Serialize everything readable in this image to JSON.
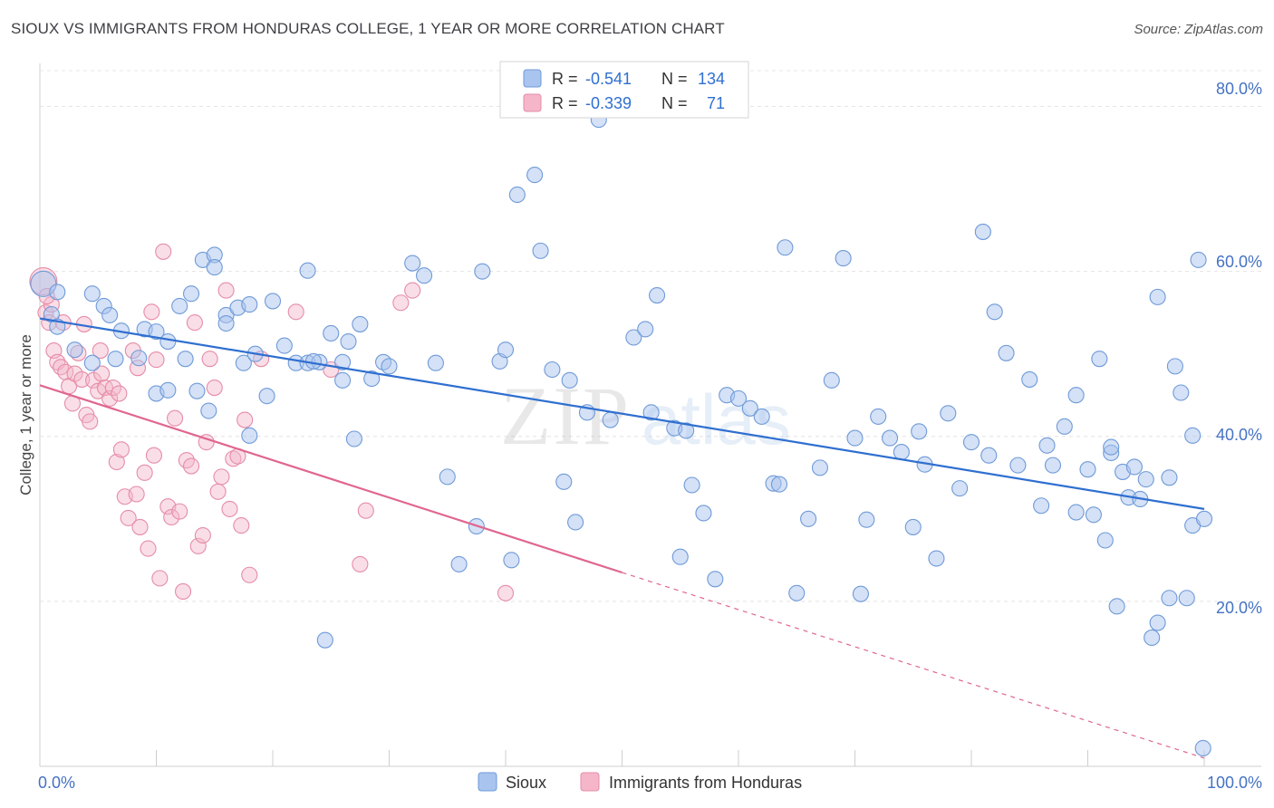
{
  "title": "SIOUX VS IMMIGRANTS FROM HONDURAS COLLEGE, 1 YEAR OR MORE CORRELATION CHART",
  "source": "Source: ZipAtlas.com",
  "watermark": "ZIPatlas",
  "colors": {
    "sioux_fill": "#a9c4ee",
    "sioux_stroke": "#6f9ad8",
    "sioux_line": "#2f6fd0",
    "honduras_fill": "#f5b6c9",
    "honduras_stroke": "#e58ca8",
    "honduras_line": "#e06690",
    "tick_text": "#4472c4"
  },
  "legend_top": {
    "rows": [
      {
        "r_label": "R =",
        "r_value": "-0.541",
        "n_label": "N =",
        "n_value": "134"
      },
      {
        "r_label": "R =",
        "r_value": "-0.339",
        "n_label": "N =",
        "n_value": "71"
      }
    ]
  },
  "legend_bottom": [
    "Sioux",
    "Immigrants from Honduras"
  ],
  "chart_data": {
    "type": "scatter",
    "title": "SIOUX VS IMMIGRANTS FROM HONDURAS COLLEGE, 1 YEAR OR MORE CORRELATION CHART",
    "xlabel": "",
    "ylabel": "College, 1 year or more",
    "xlim": [
      0,
      100
    ],
    "ylim": [
      0,
      85
    ],
    "x_tick_labels": [
      "0.0%",
      "100.0%"
    ],
    "y_ticks": [
      20,
      40,
      60,
      80
    ],
    "y_tick_labels": [
      "20.0%",
      "40.0%",
      "60.0%",
      "80.0%"
    ],
    "grid": true,
    "series": [
      {
        "name": "Sioux",
        "R": -0.541,
        "N": 134,
        "trend": [
          [
            0,
            54.3
          ],
          [
            100,
            31.2
          ]
        ],
        "points": [
          [
            0.3,
            58.5
          ],
          [
            1.5,
            57.5
          ],
          [
            4.5,
            57.3
          ],
          [
            5.5,
            55.8
          ],
          [
            6.0,
            54.7
          ],
          [
            7.0,
            52.8
          ],
          [
            9.0,
            53.0
          ],
          [
            10.0,
            52.7
          ],
          [
            11.0,
            51.5
          ],
          [
            12.0,
            55.8
          ],
          [
            13.0,
            57.3
          ],
          [
            14.0,
            61.4
          ],
          [
            15.0,
            62.0
          ],
          [
            16.0,
            54.7
          ],
          [
            17.0,
            55.6
          ],
          [
            18.0,
            56.0
          ],
          [
            1.0,
            54.8
          ],
          [
            1.5,
            53.3
          ],
          [
            3.0,
            50.5
          ],
          [
            4.5,
            48.9
          ],
          [
            6.5,
            49.4
          ],
          [
            8.5,
            49.5
          ],
          [
            10.0,
            45.2
          ],
          [
            11.0,
            45.6
          ],
          [
            12.5,
            49.4
          ],
          [
            13.5,
            45.5
          ],
          [
            14.5,
            43.1
          ],
          [
            15.0,
            60.5
          ],
          [
            16.0,
            53.7
          ],
          [
            17.5,
            48.9
          ],
          [
            18.5,
            50.0
          ],
          [
            19.5,
            44.9
          ],
          [
            21.0,
            51.0
          ],
          [
            22.0,
            48.9
          ],
          [
            23.0,
            48.9
          ],
          [
            24.0,
            49.0
          ],
          [
            25.0,
            52.5
          ],
          [
            26.0,
            46.8
          ],
          [
            27.5,
            53.6
          ],
          [
            28.5,
            47.0
          ],
          [
            29.5,
            49.0
          ],
          [
            20.0,
            56.4
          ],
          [
            23.0,
            60.1
          ],
          [
            23.5,
            49.1
          ],
          [
            26.0,
            49.0
          ],
          [
            27.0,
            39.7
          ],
          [
            30.0,
            48.5
          ],
          [
            32.0,
            61.0
          ],
          [
            33.0,
            59.5
          ],
          [
            34.0,
            48.9
          ],
          [
            35.0,
            35.1
          ],
          [
            36.0,
            24.5
          ],
          [
            37.5,
            29.1
          ],
          [
            38.0,
            60.0
          ],
          [
            39.5,
            49.1
          ],
          [
            40.5,
            25.0
          ],
          [
            41.0,
            69.3
          ],
          [
            42.5,
            71.7
          ],
          [
            43.0,
            62.5
          ],
          [
            44.0,
            48.1
          ],
          [
            45.0,
            34.5
          ],
          [
            46.0,
            29.6
          ],
          [
            47.0,
            42.9
          ],
          [
            48.0,
            78.4
          ],
          [
            49.0,
            42.0
          ],
          [
            51.0,
            52.0
          ],
          [
            52.0,
            53.0
          ],
          [
            53.0,
            57.1
          ],
          [
            54.5,
            41.0
          ],
          [
            55.0,
            25.4
          ],
          [
            56.0,
            34.1
          ],
          [
            57.0,
            30.7
          ],
          [
            58.0,
            22.7
          ],
          [
            59.0,
            45.0
          ],
          [
            60.0,
            44.6
          ],
          [
            61.0,
            43.4
          ],
          [
            62.0,
            42.4
          ],
          [
            63.0,
            34.3
          ],
          [
            64.0,
            62.9
          ],
          [
            65.0,
            21.0
          ],
          [
            67.0,
            36.2
          ],
          [
            68.0,
            46.8
          ],
          [
            69.0,
            61.6
          ],
          [
            70.0,
            39.8
          ],
          [
            71.0,
            29.9
          ],
          [
            72.0,
            42.4
          ],
          [
            73.0,
            39.8
          ],
          [
            74.0,
            38.1
          ],
          [
            75.0,
            29.0
          ],
          [
            76.0,
            36.6
          ],
          [
            77.0,
            25.2
          ],
          [
            78.0,
            42.8
          ],
          [
            79.0,
            33.7
          ],
          [
            80.0,
            39.3
          ],
          [
            81.0,
            64.8
          ],
          [
            82.0,
            55.1
          ],
          [
            83.0,
            50.1
          ],
          [
            84.0,
            36.5
          ],
          [
            85.0,
            46.9
          ],
          [
            86.0,
            31.6
          ],
          [
            87.0,
            36.5
          ],
          [
            88.0,
            41.2
          ],
          [
            89.0,
            45.0
          ],
          [
            90.0,
            36.0
          ],
          [
            91.0,
            49.4
          ],
          [
            92.0,
            38.0
          ],
          [
            93.0,
            35.7
          ],
          [
            94.0,
            36.3
          ],
          [
            95.0,
            34.8
          ],
          [
            96.0,
            56.9
          ],
          [
            97.0,
            35.0
          ],
          [
            98.0,
            45.3
          ],
          [
            99.0,
            40.1
          ],
          [
            99.5,
            61.4
          ],
          [
            89.0,
            30.8
          ],
          [
            90.5,
            30.5
          ],
          [
            91.5,
            27.4
          ],
          [
            92.5,
            19.4
          ],
          [
            93.5,
            32.6
          ],
          [
            94.5,
            32.4
          ],
          [
            95.5,
            15.6
          ],
          [
            96.0,
            17.4
          ],
          [
            97.0,
            20.4
          ],
          [
            98.5,
            20.4
          ],
          [
            99.0,
            29.2
          ],
          [
            18.0,
            40.1
          ],
          [
            24.5,
            15.3
          ],
          [
            40.0,
            50.5
          ],
          [
            52.5,
            42.9
          ],
          [
            55.5,
            40.7
          ],
          [
            63.5,
            34.2
          ],
          [
            66.0,
            30.0
          ],
          [
            70.5,
            20.9
          ],
          [
            75.5,
            40.6
          ],
          [
            81.5,
            37.7
          ],
          [
            86.5,
            38.9
          ],
          [
            92.0,
            38.7
          ],
          [
            99.9,
            2.2
          ],
          [
            97.5,
            48.5
          ],
          [
            100.0,
            30.0
          ],
          [
            45.5,
            46.8
          ],
          [
            26.5,
            51.5
          ]
        ]
      },
      {
        "name": "Immigrants from Honduras",
        "R": -0.339,
        "N": 71,
        "trend": [
          [
            0,
            46.2
          ],
          [
            50,
            23.5
          ]
        ],
        "trend_dashed": [
          [
            50,
            23.5
          ],
          [
            100,
            1.0
          ]
        ],
        "points": [
          [
            0.3,
            58.8
          ],
          [
            0.5,
            55.0
          ],
          [
            0.8,
            53.8
          ],
          [
            1.2,
            50.4
          ],
          [
            1.5,
            49.0
          ],
          [
            1.8,
            48.4
          ],
          [
            2.2,
            47.8
          ],
          [
            2.5,
            46.1
          ],
          [
            2.8,
            44.0
          ],
          [
            3.0,
            47.6
          ],
          [
            3.3,
            50.1
          ],
          [
            3.6,
            46.9
          ],
          [
            4.0,
            42.6
          ],
          [
            4.3,
            41.8
          ],
          [
            4.6,
            46.8
          ],
          [
            5.0,
            45.5
          ],
          [
            5.3,
            47.6
          ],
          [
            5.6,
            45.9
          ],
          [
            6.0,
            44.6
          ],
          [
            6.3,
            45.9
          ],
          [
            6.6,
            36.9
          ],
          [
            7.0,
            38.4
          ],
          [
            7.3,
            32.7
          ],
          [
            7.6,
            30.1
          ],
          [
            8.0,
            50.4
          ],
          [
            8.3,
            33.0
          ],
          [
            8.6,
            29.0
          ],
          [
            9.0,
            35.6
          ],
          [
            9.3,
            26.4
          ],
          [
            9.6,
            55.1
          ],
          [
            10.0,
            49.3
          ],
          [
            10.3,
            22.8
          ],
          [
            10.6,
            62.4
          ],
          [
            11.0,
            31.5
          ],
          [
            11.3,
            30.2
          ],
          [
            11.6,
            42.2
          ],
          [
            12.0,
            30.9
          ],
          [
            12.3,
            21.2
          ],
          [
            12.6,
            37.1
          ],
          [
            13.0,
            36.4
          ],
          [
            13.3,
            53.8
          ],
          [
            13.6,
            26.7
          ],
          [
            14.0,
            28.0
          ],
          [
            14.3,
            39.3
          ],
          [
            14.6,
            49.4
          ],
          [
            15.0,
            45.9
          ],
          [
            15.3,
            33.3
          ],
          [
            15.6,
            35.1
          ],
          [
            16.0,
            57.7
          ],
          [
            16.3,
            31.2
          ],
          [
            16.6,
            37.3
          ],
          [
            17.0,
            37.6
          ],
          [
            17.3,
            29.2
          ],
          [
            17.6,
            42.0
          ],
          [
            18.0,
            23.2
          ],
          [
            19.0,
            49.4
          ],
          [
            22.0,
            55.1
          ],
          [
            25.0,
            48.1
          ],
          [
            27.5,
            24.5
          ],
          [
            28.0,
            31.0
          ],
          [
            31.0,
            56.2
          ],
          [
            32.0,
            57.7
          ],
          [
            40.0,
            21.0
          ],
          [
            2.0,
            53.8
          ],
          [
            3.8,
            53.6
          ],
          [
            5.2,
            50.4
          ],
          [
            6.8,
            45.2
          ],
          [
            8.4,
            48.3
          ],
          [
            9.8,
            37.7
          ],
          [
            1.0,
            56.0
          ],
          [
            0.6,
            57.0
          ]
        ]
      }
    ]
  }
}
